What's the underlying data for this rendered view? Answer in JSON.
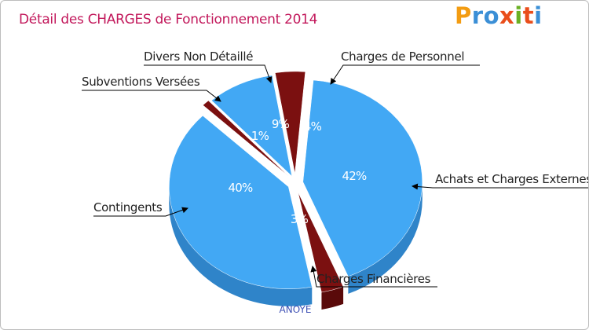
{
  "title": "Détail des CHARGES de Fonctionnement 2014",
  "logo": {
    "letters": [
      "P",
      "r",
      "o",
      "x",
      "i",
      "t",
      "i"
    ],
    "colors": [
      "#f39c12",
      "#3b8fd6",
      "#3b8fd6",
      "#e94e1b",
      "#6ab023",
      "#e94e1b",
      "#3b8fd6"
    ]
  },
  "commune": "ANOYE",
  "colors": {
    "title": "#c2185b",
    "commune": "#3f51b5",
    "blue": "#42a8f4",
    "blue_dark": "#2f84c9",
    "red": "#7b1010",
    "red_dark": "#5a0a0a"
  },
  "chart_data": {
    "type": "pie",
    "title": "Détail des CHARGES de Fonctionnement 2014",
    "slices": [
      {
        "label": "Achats et Charges Externes",
        "value": 42,
        "pct_label": "42%",
        "color": "#42a8f4"
      },
      {
        "label": "Charges Financières",
        "value": 3,
        "pct_label": "3%",
        "color": "#7b1010"
      },
      {
        "label": "Contingents",
        "value": 40,
        "pct_label": "40%",
        "color": "#42a8f4"
      },
      {
        "label": "Subventions Versées",
        "value": 1,
        "pct_label": "1%",
        "color": "#7b1010"
      },
      {
        "label": "Divers Non Détaillé",
        "value": 9,
        "pct_label": "9%",
        "color": "#42a8f4"
      },
      {
        "label": "Charges de Personnel",
        "value": 4,
        "pct_label": "4%",
        "color": "#7b1010"
      }
    ]
  }
}
